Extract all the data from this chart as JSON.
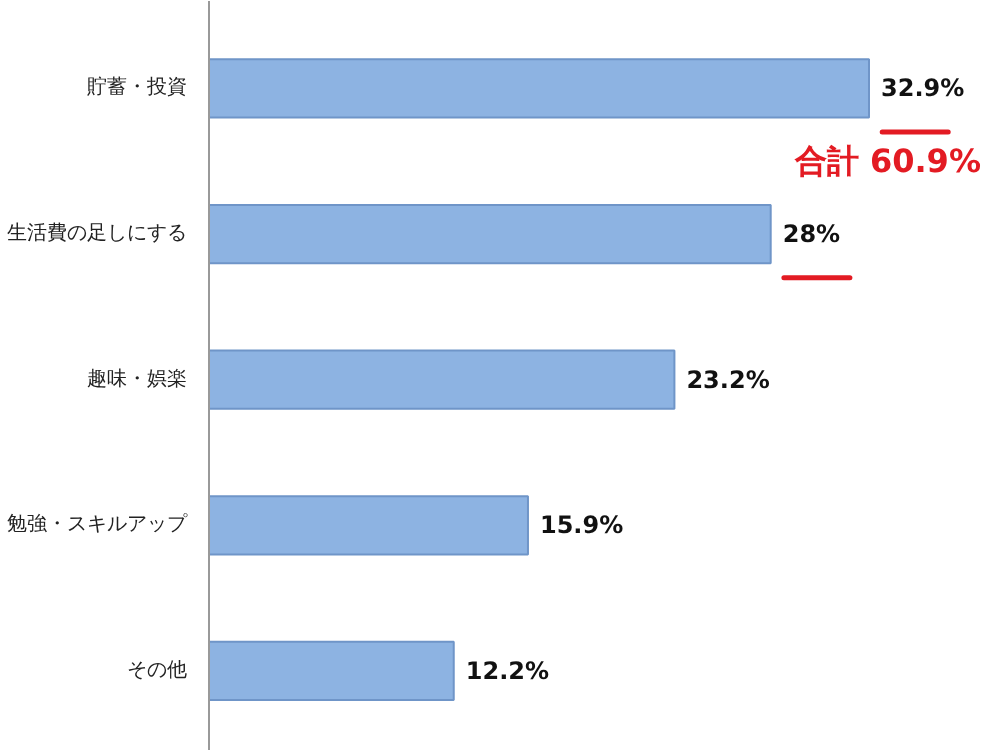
{
  "chart_data": {
    "type": "bar",
    "orientation": "horizontal",
    "categories": [
      "貯蓄・投資",
      "生活費の足しにする",
      "趣味・娯楽",
      "勉強・スキルアップ",
      "その他"
    ],
    "values": [
      32.9,
      28,
      23.2,
      15.9,
      12.2
    ],
    "value_labels": [
      "32.9%",
      "28%",
      "23.2%",
      "15.9%",
      "12.2%"
    ],
    "color": "#8db3e2",
    "annotations": [
      "合計 60.9%"
    ],
    "grid": false
  }
}
